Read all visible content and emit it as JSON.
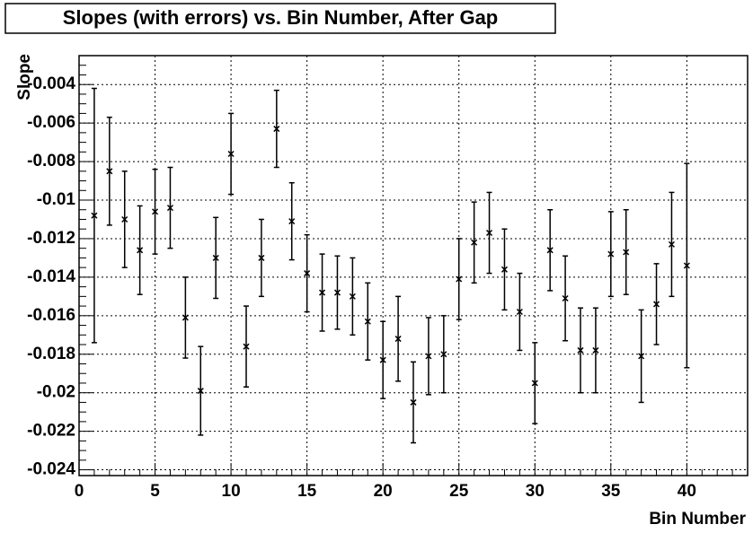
{
  "chart_data": {
    "type": "errorbar",
    "title": "Slopes (with errors) vs. Bin Number, After Gap",
    "x_label": "Bin Number",
    "y_label": "Slope",
    "x": [
      1,
      2,
      3,
      4,
      5,
      6,
      7,
      8,
      9,
      10,
      11,
      12,
      13,
      14,
      15,
      16,
      17,
      18,
      19,
      20,
      21,
      22,
      23,
      24,
      25,
      26,
      27,
      28,
      29,
      30,
      31,
      32,
      33,
      34,
      35,
      36,
      37,
      38,
      39,
      40
    ],
    "values": [
      -0.0108,
      -0.0085,
      -0.011,
      -0.0126,
      -0.0106,
      -0.0104,
      -0.0161,
      -0.0199,
      -0.013,
      -0.0076,
      -0.0176,
      -0.013,
      -0.0063,
      -0.0111,
      -0.0138,
      -0.0148,
      -0.0148,
      -0.015,
      -0.0163,
      -0.0183,
      -0.0172,
      -0.0205,
      -0.0181,
      -0.018,
      -0.0141,
      -0.0122,
      -0.0117,
      -0.0136,
      -0.0158,
      -0.0195,
      -0.0126,
      -0.0151,
      -0.0178,
      -0.0178,
      -0.0128,
      -0.0127,
      -0.0181,
      -0.0154,
      -0.0123,
      -0.0134
    ],
    "errors": [
      0.0066,
      0.0028,
      0.0025,
      0.0023,
      0.0022,
      0.0021,
      0.0021,
      0.0023,
      0.0021,
      0.0021,
      0.0021,
      0.002,
      0.002,
      0.002,
      0.002,
      0.002,
      0.0019,
      0.002,
      0.002,
      0.002,
      0.0022,
      0.0021,
      0.002,
      0.002,
      0.0021,
      0.0021,
      0.0021,
      0.0021,
      0.002,
      0.0021,
      0.0021,
      0.0022,
      0.0022,
      0.0022,
      0.0022,
      0.0022,
      0.0024,
      0.0021,
      0.0027,
      0.0053
    ],
    "color": "#000000",
    "xlim": [
      0,
      44
    ],
    "xticks": [
      0,
      5,
      10,
      15,
      20,
      25,
      30,
      35,
      40
    ],
    "ylim": [
      -0.0243,
      -0.0025
    ],
    "yticks": [
      -0.024,
      -0.022,
      -0.02,
      -0.018,
      -0.016,
      -0.014,
      -0.012,
      -0.01,
      -0.008,
      -0.006,
      -0.004
    ],
    "grid": true
  }
}
